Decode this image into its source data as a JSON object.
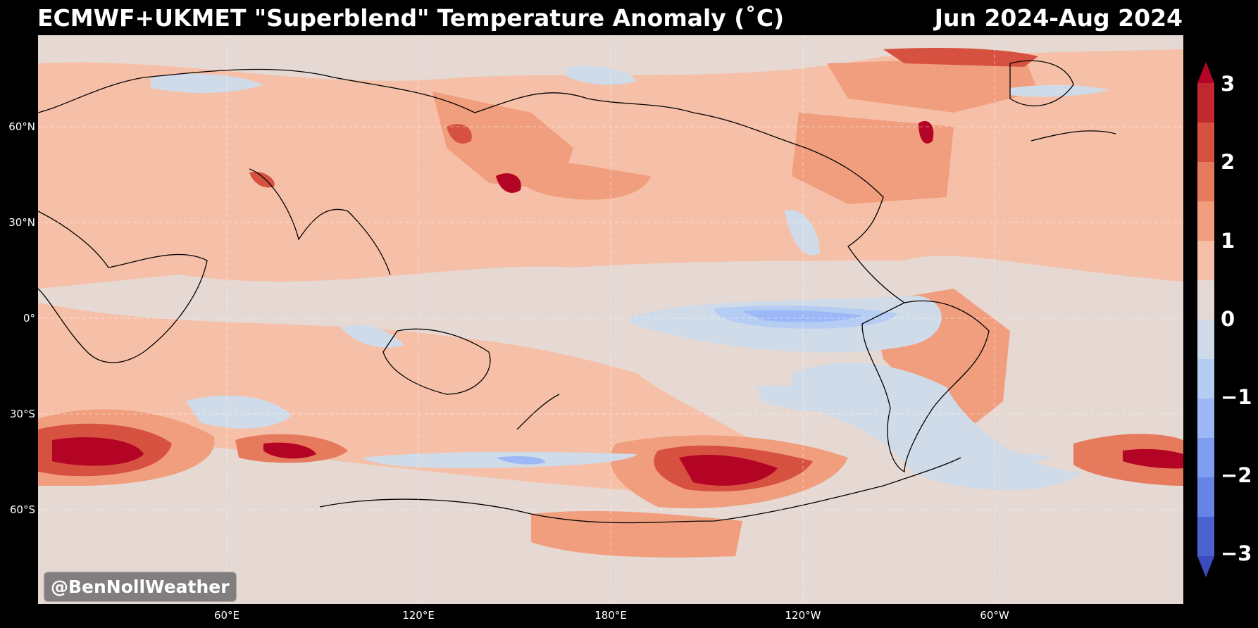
{
  "title": "ECMWF+UKMET \"Superblend\" Temperature Anomaly (˚C)",
  "period": "Jun 2024-Aug 2024",
  "watermark": "@BenNollWeather",
  "lat_labels": [
    "60°N",
    "30°N",
    "0°",
    "30°S",
    "60°S"
  ],
  "lon_labels": [
    "60°E",
    "120°E",
    "180°E",
    "120°W",
    "60°W"
  ],
  "colorbar": {
    "ticks": [
      "3",
      "2",
      "1",
      "0",
      "−1",
      "−2",
      "−3"
    ],
    "colors_top_to_bottom": [
      "#c0282e",
      "#d6513f",
      "#e67a5c",
      "#f09e7d",
      "#f6c0a8",
      "#e6d8d2",
      "#cfdbe8",
      "#b5cdf3",
      "#9cb8f6",
      "#7f9ef2",
      "#6584e5",
      "#4b63d0"
    ],
    "extend_max_color": "#b40426",
    "extend_min_color": "#3b4cc0"
  },
  "map": {
    "background_color": "#e6d8d2",
    "warm_colors": [
      "#f6c0a8",
      "#f09e7d",
      "#e67a5c",
      "#d6513f",
      "#b40426"
    ],
    "cool_colors": [
      "#cfdbe8",
      "#b5cdf3",
      "#9cb8f6",
      "#7f9ef2"
    ]
  }
}
